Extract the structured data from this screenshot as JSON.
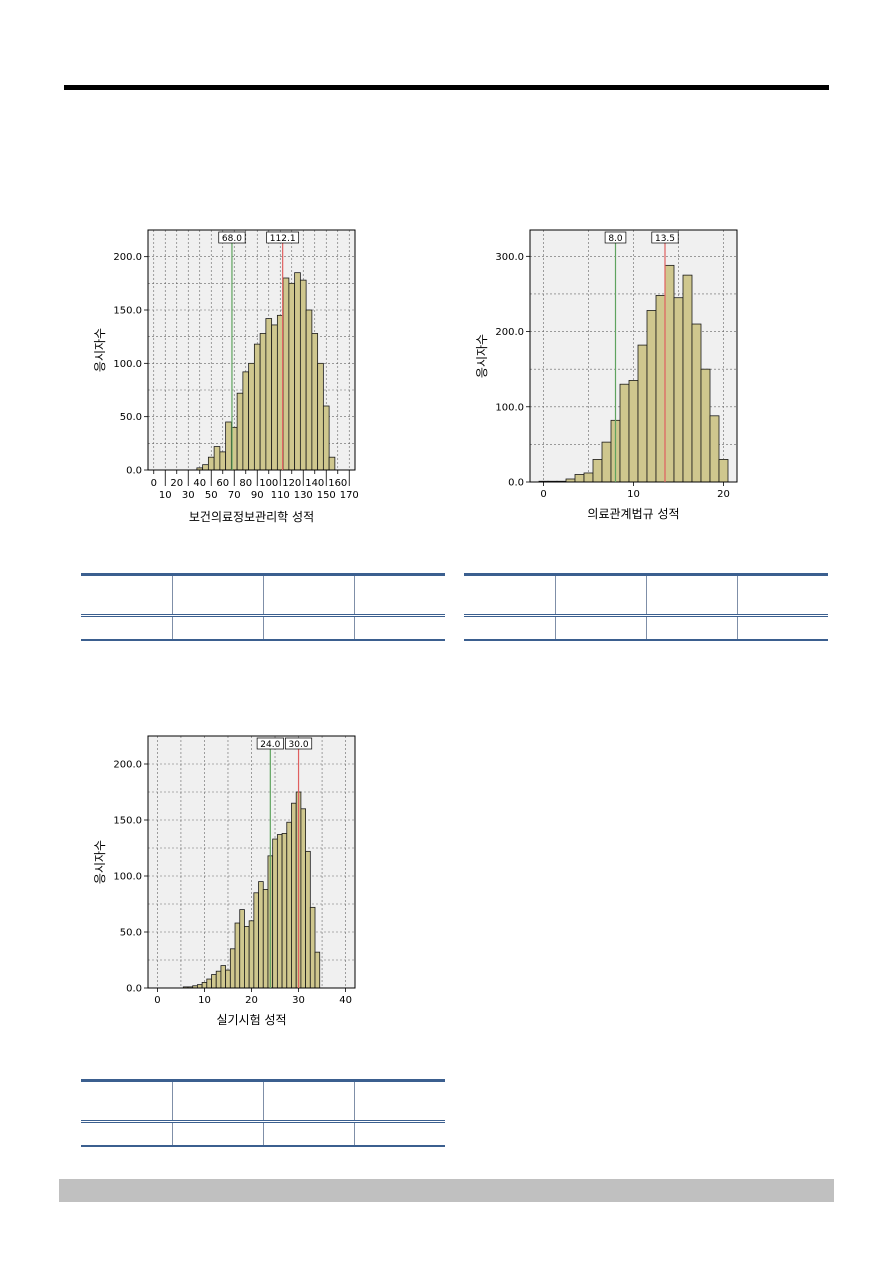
{
  "chart_data": [
    {
      "type": "bar",
      "subtype": "histogram",
      "xlabel": "보건의료정보관리학 성적",
      "ylabel": "응시자수",
      "bin_width": 5,
      "bin_start": 37.5,
      "values": [
        2,
        5,
        12,
        22,
        17,
        45,
        40,
        72,
        92,
        100,
        118,
        128,
        142,
        136,
        145,
        180,
        175,
        185,
        178,
        150,
        128,
        100,
        60,
        12
      ],
      "ylim": [
        0,
        225
      ],
      "yticks": [
        "0.0",
        "50.0",
        "100.0",
        "150.0",
        "200.0"
      ],
      "xticks_top": [
        "0",
        "20",
        "40",
        "60",
        "80",
        "100",
        "120",
        "140",
        "160"
      ],
      "xticks_bottom": [
        "10",
        "30",
        "50",
        "70",
        "90",
        "110",
        "130",
        "150",
        "170"
      ],
      "xlim": [
        -5,
        175
      ],
      "markers": [
        {
          "label": "68.0",
          "value": 68.0,
          "color": "#5fa35f"
        },
        {
          "label": "112.1",
          "value": 112.1,
          "color": "#e06060"
        }
      ],
      "grid": true
    },
    {
      "type": "bar",
      "subtype": "histogram",
      "xlabel": "의료관계법규 성적",
      "ylabel": "응시자수",
      "bin_width": 1,
      "bin_start": -0.5,
      "values": [
        1,
        1,
        1,
        4,
        10,
        12,
        30,
        53,
        82,
        130,
        135,
        182,
        228,
        248,
        288,
        245,
        275,
        210,
        150,
        88,
        30
      ],
      "ylim": [
        0,
        335
      ],
      "yticks": [
        "0.0",
        "100.0",
        "200.0",
        "300.0"
      ],
      "xticks": [
        "0",
        "10",
        "20"
      ],
      "xlim": [
        -1.5,
        21.5
      ],
      "markers": [
        {
          "label": "8.0",
          "value": 8.0,
          "color": "#5fa35f"
        },
        {
          "label": "13.5",
          "value": 13.5,
          "color": "#e06060"
        }
      ],
      "grid": true
    },
    {
      "type": "bar",
      "subtype": "histogram",
      "xlabel": "실기시험 성적",
      "ylabel": "응시자수",
      "bin_width": 1,
      "bin_start": 5.5,
      "values": [
        1,
        1,
        2,
        3,
        5,
        8,
        12,
        15,
        20,
        16,
        35,
        58,
        70,
        55,
        60,
        85,
        95,
        88,
        118,
        133,
        137,
        138,
        148,
        165,
        175,
        160,
        122,
        72,
        32
      ],
      "ylim": [
        0,
        225
      ],
      "yticks": [
        "0.0",
        "50.0",
        "100.0",
        "150.0",
        "200.0"
      ],
      "xticks": [
        "0",
        "10",
        "20",
        "30",
        "40"
      ],
      "xlim": [
        -2,
        42
      ],
      "markers": [
        {
          "label": "24.0",
          "value": 24.0,
          "color": "#5fa35f"
        },
        {
          "label": "30.0",
          "value": 30.0,
          "color": "#e06060"
        }
      ],
      "grid": true
    }
  ],
  "colors": {
    "bar_fill": "#cfc78e",
    "bar_stroke": "#1a1a1a",
    "plot_bg": "#f0f0f0",
    "table_rule": "#3b5f8f"
  }
}
